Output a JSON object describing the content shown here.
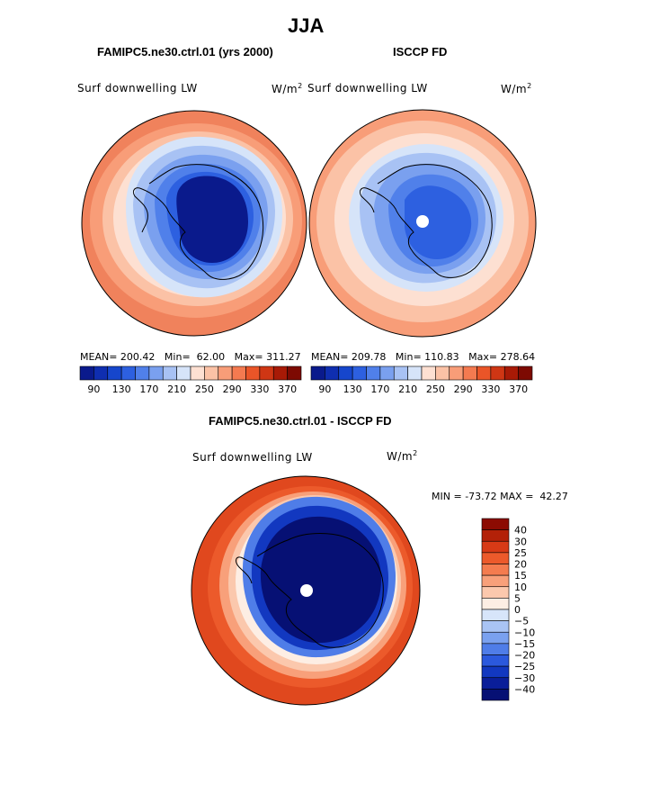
{
  "chart_data": {
    "type": "heatmap",
    "title": "JJA",
    "panels": [
      {
        "title": "FAMIPC5.ne30.ctrl.01 (yrs 2000)",
        "variable": "Surf downwelling LW",
        "units": "W/m",
        "units_exp": "2",
        "stats": {
          "mean_label": "MEAN=",
          "mean": "200.42",
          "min_label": "Min=",
          "min": "62.00",
          "max_label": "Max=",
          "max": "311.27"
        },
        "colorbar": {
          "tick_labels": [
            "90",
            "130",
            "170",
            "210",
            "250",
            "290",
            "330",
            "370"
          ],
          "colors": [
            "#0a1a8c",
            "#0f2eb0",
            "#1646cc",
            "#2d60e0",
            "#5080ea",
            "#7aa0ef",
            "#a8c2f4",
            "#d6e4f9",
            "#fde0d2",
            "#fbc2a6",
            "#f89d78",
            "#f47a50",
            "#ea5528",
            "#cf3614",
            "#a81a06",
            "#7d0a02"
          ]
        },
        "field_summary": {
          "south_pole_region": "deep blue (< 90)",
          "mid_latitudes": "orange-red (290-330)"
        }
      },
      {
        "title": "ISCCP FD",
        "variable": "Surf downwelling LW",
        "units": "W/m",
        "units_exp": "2",
        "stats": {
          "mean_label": "MEAN=",
          "mean": "209.78",
          "min_label": "Min=",
          "min": "110.83",
          "max_label": "Max=",
          "max": "278.64"
        },
        "colorbar": {
          "tick_labels": [
            "90",
            "130",
            "170",
            "210",
            "250",
            "290",
            "330",
            "370"
          ],
          "colors": [
            "#0a1a8c",
            "#0f2eb0",
            "#1646cc",
            "#2d60e0",
            "#5080ea",
            "#7aa0ef",
            "#a8c2f4",
            "#d6e4f9",
            "#fde0d2",
            "#fbc2a6",
            "#f89d78",
            "#f47a50",
            "#ea5528",
            "#cf3614",
            "#a81a06",
            "#7d0a02"
          ]
        },
        "field_summary": {
          "south_pole_region": "blue (130-170), missing data at pole",
          "mid_latitudes": "light orange (250-290)"
        }
      },
      {
        "title": "FAMIPC5.ne30.ctrl.01 - ISCCP FD",
        "variable": "Surf downwelling LW",
        "units": "W/m",
        "units_exp": "2",
        "stats": {
          "min_label": "MIN =",
          "min": "-73.72",
          "max_label": "MAX =",
          "max": "42.27"
        },
        "colorbar": {
          "tick_labels": [
            "40",
            "30",
            "25",
            "20",
            "15",
            "10",
            "5",
            "0",
            "−5",
            "−10",
            "−15",
            "−20",
            "−25",
            "−30",
            "−40"
          ],
          "colors": [
            "#8c0b02",
            "#b32108",
            "#d73a16",
            "#ec5a2b",
            "#f47c4f",
            "#f8a07a",
            "#fbc8ad",
            "#fdeee4",
            "#d7e5fa",
            "#a9c4f4",
            "#7aa1ef",
            "#4f7de8",
            "#2b59dd",
            "#1238c0",
            "#0a1e99",
            "#061074"
          ]
        },
        "field_summary": {
          "antarctica": "deep blue (< -40)",
          "southern_ocean_ring": "red (15-40)"
        }
      }
    ]
  }
}
